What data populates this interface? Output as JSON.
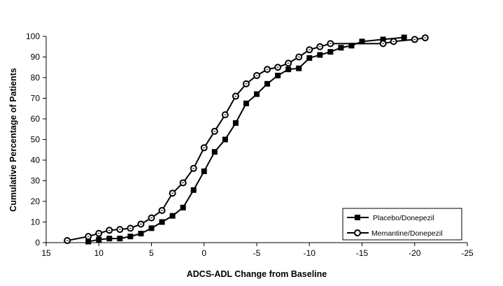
{
  "chart_data": {
    "type": "line",
    "title": "",
    "xlabel": "ADCS-ADL Change from Baseline",
    "ylabel": "Cumulative Percentage of Patients",
    "xlim": [
      15,
      -25
    ],
    "ylim": [
      0,
      100
    ],
    "x_reversed": true,
    "xticks": [
      15,
      10,
      5,
      0,
      -5,
      -10,
      -15,
      -20,
      -25
    ],
    "yticks": [
      0,
      10,
      20,
      30,
      40,
      50,
      60,
      70,
      80,
      90,
      100
    ],
    "grid": false,
    "legend_position": "lower right",
    "series": [
      {
        "name": "Placebo/Donepezil",
        "marker": "square",
        "x": [
          11,
          10,
          9,
          8,
          7,
          6,
          5,
          4,
          3,
          2,
          1,
          0,
          -1,
          -2,
          -3,
          -4,
          -5,
          -6,
          -7,
          -8,
          -9,
          -10,
          -11,
          -12,
          -13,
          -14,
          -15,
          -17,
          -19
        ],
        "y": [
          0.5,
          1.5,
          2,
          2,
          3,
          4.4,
          7,
          10,
          13,
          17,
          25.5,
          34.6,
          44,
          50,
          58,
          67.5,
          72,
          77,
          81,
          84,
          84.5,
          89.5,
          91,
          92.5,
          94.5,
          95.5,
          97.5,
          98.5,
          99.5
        ]
      },
      {
        "name": "Memantine/Donepezil",
        "marker": "circle",
        "x": [
          13,
          11,
          10,
          9,
          8,
          7,
          6,
          5,
          4,
          3,
          2,
          1,
          0,
          -1,
          -2,
          -3,
          -4,
          -5,
          -6,
          -7,
          -8,
          -9,
          -10,
          -11,
          -12,
          -17,
          -18,
          -20,
          -21
        ],
        "y": [
          1,
          3,
          4.5,
          6,
          6.4,
          7,
          9,
          12,
          15.6,
          24,
          29,
          36,
          46,
          54,
          62,
          71,
          77,
          81,
          84,
          85,
          87,
          90,
          93.5,
          95,
          96.5,
          96.5,
          97.5,
          98.5,
          99.3
        ]
      }
    ]
  },
  "legend": {
    "items": [
      {
        "label": "Placebo/Donepezil"
      },
      {
        "label": "Memantine/Donepezil"
      }
    ]
  },
  "axes": {
    "x_title": "ADCS-ADL Change from Baseline",
    "y_title": "Cumulative Percentage of Patients"
  }
}
